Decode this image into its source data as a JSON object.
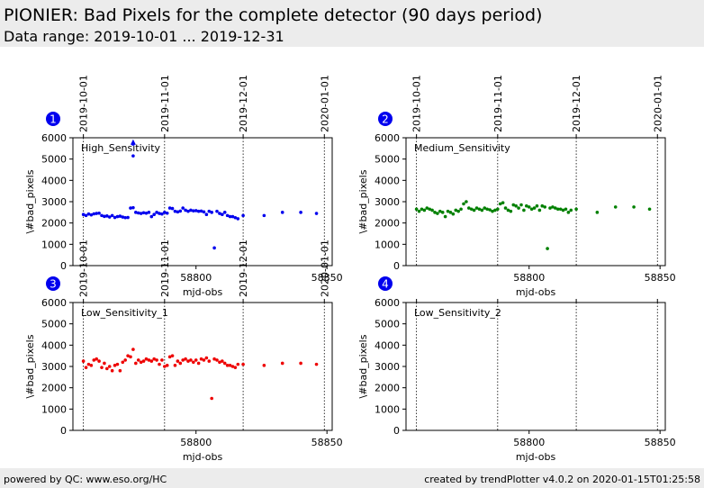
{
  "header": {
    "title": "PIONIER: Bad Pixels for the complete detector (90 days period)",
    "subtitle": "Data range: 2019-10-01 ... 2019-12-31"
  },
  "footer": {
    "left": "powered by QC: www.eso.org/HC",
    "right": "created by trendPlotter v4.0.2 on 2020-01-15T01:25:58"
  },
  "colors": {
    "badge": "#0000ee",
    "series1": "#0000ee",
    "series2": "#008000",
    "series3": "#ee0000"
  },
  "chart_data": [
    {
      "type": "scatter",
      "panel_number": "1",
      "label": "High_Sensitivity",
      "color": "#0000ee",
      "xlabel": "mjd-obs",
      "ylabel": "\\#bad_pixels",
      "xlim": [
        58753,
        58852
      ],
      "ylim": [
        0,
        6000
      ],
      "yticks": [
        "0",
        "1000",
        "2000",
        "3000",
        "4000",
        "5000",
        "6000"
      ],
      "xticks": [
        {
          "value": 58800,
          "label": "58800"
        },
        {
          "value": 58850,
          "label": "58850"
        }
      ],
      "date_ticks": [
        {
          "value": 58757,
          "label": "2019-10-01"
        },
        {
          "value": 58788,
          "label": "2019-11-01"
        },
        {
          "value": 58818,
          "label": "2019-12-01"
        },
        {
          "value": 58849,
          "label": "2020-01-01"
        }
      ],
      "x": [
        58757,
        58758,
        58759,
        58760,
        58761,
        58762,
        58763,
        58764,
        58765,
        58766,
        58767,
        58768,
        58769,
        58770,
        58771,
        58772,
        58773,
        58774,
        58775,
        58776,
        58777,
        58778,
        58779,
        58780,
        58781,
        58782,
        58783,
        58784,
        58785,
        58786,
        58787,
        58788,
        58789,
        58790,
        58791,
        58792,
        58793,
        58794,
        58795,
        58796,
        58797,
        58798,
        58799,
        58800,
        58801,
        58802,
        58803,
        58804,
        58805,
        58806,
        58807,
        58808,
        58809,
        58810,
        58811,
        58812,
        58813,
        58814,
        58815,
        58816,
        58818,
        58826,
        58833,
        58840,
        58846,
        58776,
        58776,
        58776
      ],
      "y": [
        2400,
        2350,
        2420,
        2380,
        2430,
        2450,
        2460,
        2350,
        2310,
        2330,
        2280,
        2350,
        2260,
        2300,
        2320,
        2280,
        2250,
        2260,
        2700,
        2720,
        2500,
        2470,
        2450,
        2480,
        2460,
        2500,
        2300,
        2400,
        2500,
        2450,
        2420,
        2500,
        2460,
        2700,
        2680,
        2550,
        2520,
        2560,
        2700,
        2600,
        2550,
        2600,
        2570,
        2580,
        2550,
        2560,
        2520,
        2400,
        2550,
        2500,
        830,
        2550,
        2450,
        2400,
        2500,
        2350,
        2300,
        2300,
        2250,
        2200,
        2350,
        2350,
        2500,
        2500,
        2450,
        5800,
        5700,
        5150
      ]
    },
    {
      "type": "scatter",
      "panel_number": "2",
      "label": "Medium_Sensitivity",
      "color": "#008000",
      "xlabel": "mjd-obs",
      "ylabel": "\\#bad_pixels",
      "xlim": [
        58753,
        58852
      ],
      "ylim": [
        0,
        6000
      ],
      "yticks": [
        "0",
        "1000",
        "2000",
        "3000",
        "4000",
        "5000",
        "6000"
      ],
      "xticks": [
        {
          "value": 58800,
          "label": "58800"
        },
        {
          "value": 58850,
          "label": "58850"
        }
      ],
      "date_ticks": [
        {
          "value": 58757,
          "label": "2019-10-01"
        },
        {
          "value": 58788,
          "label": "2019-11-01"
        },
        {
          "value": 58818,
          "label": "2019-12-01"
        },
        {
          "value": 58849,
          "label": "2020-01-01"
        }
      ],
      "x": [
        58757,
        58758,
        58759,
        58760,
        58761,
        58762,
        58763,
        58764,
        58765,
        58766,
        58767,
        58768,
        58769,
        58770,
        58771,
        58772,
        58773,
        58774,
        58775,
        58776,
        58777,
        58778,
        58779,
        58780,
        58781,
        58782,
        58783,
        58784,
        58785,
        58786,
        58787,
        58788,
        58789,
        58790,
        58791,
        58792,
        58793,
        58794,
        58795,
        58796,
        58797,
        58798,
        58799,
        58800,
        58801,
        58802,
        58803,
        58804,
        58805,
        58806,
        58807,
        58808,
        58809,
        58810,
        58811,
        58812,
        58813,
        58814,
        58815,
        58816,
        58818,
        58826,
        58833,
        58840,
        58846
      ],
      "y": [
        2650,
        2550,
        2650,
        2600,
        2700,
        2650,
        2600,
        2500,
        2450,
        2550,
        2500,
        2300,
        2550,
        2500,
        2420,
        2600,
        2550,
        2650,
        2900,
        3000,
        2700,
        2650,
        2600,
        2700,
        2650,
        2600,
        2700,
        2650,
        2620,
        2550,
        2600,
        2650,
        2900,
        2950,
        2700,
        2600,
        2550,
        2850,
        2800,
        2700,
        2850,
        2600,
        2800,
        2750,
        2650,
        2700,
        2800,
        2600,
        2800,
        2750,
        800,
        2700,
        2750,
        2700,
        2650,
        2650,
        2600,
        2650,
        2500,
        2600,
        2650,
        2500,
        2750,
        2750,
        2650
      ]
    },
    {
      "type": "scatter",
      "panel_number": "3",
      "label": "Low_Sensitivity_1",
      "color": "#ee0000",
      "xlabel": "mjd-obs",
      "ylabel": "\\#bad_pixels",
      "xlim": [
        58753,
        58852
      ],
      "ylim": [
        0,
        6000
      ],
      "yticks": [
        "0",
        "1000",
        "2000",
        "3000",
        "4000",
        "5000",
        "6000"
      ],
      "xticks": [
        {
          "value": 58800,
          "label": "58800"
        },
        {
          "value": 58850,
          "label": "58850"
        }
      ],
      "date_ticks": [
        {
          "value": 58757,
          "label": "2019-10-01"
        },
        {
          "value": 58788,
          "label": "2019-11-01"
        },
        {
          "value": 58818,
          "label": "2019-12-01"
        },
        {
          "value": 58849,
          "label": "2020-01-01"
        }
      ],
      "x": [
        58757,
        58758,
        58759,
        58760,
        58761,
        58762,
        58763,
        58764,
        58765,
        58766,
        58767,
        58768,
        58769,
        58770,
        58771,
        58772,
        58773,
        58774,
        58775,
        58776,
        58777,
        58778,
        58779,
        58780,
        58781,
        58782,
        58783,
        58784,
        58785,
        58786,
        58787,
        58788,
        58789,
        58790,
        58791,
        58792,
        58793,
        58794,
        58795,
        58796,
        58797,
        58798,
        58799,
        58800,
        58801,
        58802,
        58803,
        58804,
        58805,
        58806,
        58807,
        58808,
        58809,
        58810,
        58811,
        58812,
        58813,
        58814,
        58815,
        58816,
        58818,
        58826,
        58833,
        58840,
        58846
      ],
      "y": [
        3250,
        2950,
        3100,
        3050,
        3300,
        3350,
        3250,
        2950,
        3150,
        2900,
        3000,
        2800,
        3050,
        3100,
        2800,
        3200,
        3300,
        3500,
        3450,
        3800,
        3150,
        3300,
        3200,
        3250,
        3350,
        3300,
        3250,
        3350,
        3300,
        3100,
        3300,
        3000,
        3050,
        3450,
        3500,
        3050,
        3250,
        3150,
        3300,
        3350,
        3250,
        3300,
        3200,
        3300,
        3150,
        3350,
        3300,
        3400,
        3250,
        1500,
        3350,
        3300,
        3200,
        3250,
        3150,
        3050,
        3050,
        3000,
        2950,
        3100,
        3100,
        3050,
        3150,
        3150,
        3100
      ]
    },
    {
      "type": "scatter",
      "panel_number": "4",
      "label": "Low_Sensitivity_2",
      "color": "#0000ee",
      "xlabel": "mjd-obs",
      "ylabel": "\\#bad_pixels",
      "xlim": [
        58753,
        58852
      ],
      "ylim": [
        0,
        6000
      ],
      "yticks": [
        "0",
        "1000",
        "2000",
        "3000",
        "4000",
        "5000",
        "6000"
      ],
      "xticks": [
        {
          "value": 58800,
          "label": "58800"
        },
        {
          "value": 58850,
          "label": "58850"
        }
      ],
      "date_ticks": [
        {
          "value": 58757,
          "label": ""
        },
        {
          "value": 58788,
          "label": ""
        },
        {
          "value": 58818,
          "label": ""
        },
        {
          "value": 58849,
          "label": ""
        }
      ],
      "x": [],
      "y": []
    }
  ]
}
